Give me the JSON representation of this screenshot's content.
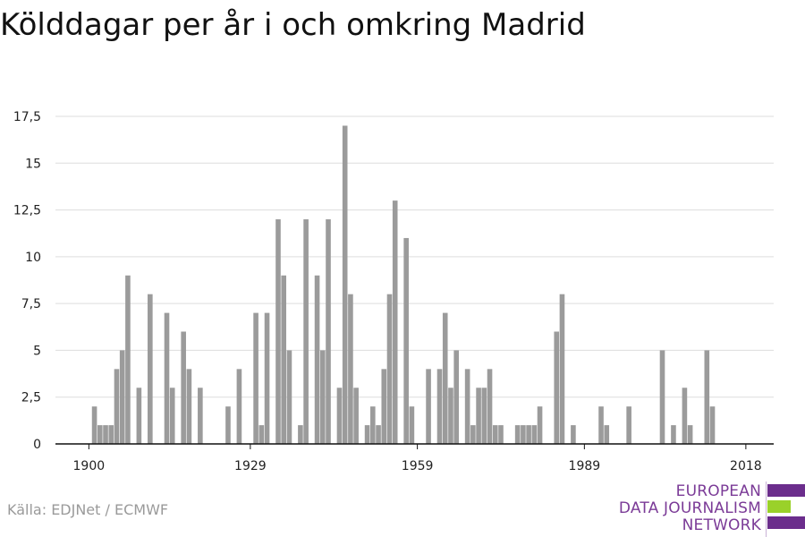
{
  "chart_data": {
    "type": "bar",
    "title": "Kölddagar per år i och omkring Madrid",
    "xlabel": "",
    "ylabel": "",
    "x_ticks": [
      "1900",
      "1929",
      "1959",
      "1989",
      "2018"
    ],
    "x_tick_years": [
      1900,
      1929,
      1959,
      1989,
      2018
    ],
    "y_ticks": [
      "0",
      "2,5",
      "5",
      "7,5",
      "10",
      "12,5",
      "15",
      "17,5"
    ],
    "y_tick_values": [
      0,
      2.5,
      5,
      7.5,
      10,
      12.5,
      15,
      17.5
    ],
    "ylim": [
      0,
      17.5
    ],
    "xlim": [
      1894,
      2023
    ],
    "grid": true,
    "bar_color": "#9b9b9b",
    "years": [
      1900,
      1901,
      1902,
      1903,
      1904,
      1905,
      1906,
      1907,
      1908,
      1909,
      1910,
      1911,
      1912,
      1913,
      1914,
      1915,
      1916,
      1917,
      1918,
      1919,
      1920,
      1921,
      1922,
      1923,
      1924,
      1925,
      1926,
      1927,
      1928,
      1929,
      1930,
      1931,
      1932,
      1933,
      1934,
      1935,
      1936,
      1937,
      1938,
      1939,
      1940,
      1941,
      1942,
      1943,
      1944,
      1945,
      1946,
      1947,
      1948,
      1949,
      1950,
      1951,
      1952,
      1953,
      1954,
      1955,
      1956,
      1957,
      1958,
      1959,
      1960,
      1961,
      1962,
      1963,
      1964,
      1965,
      1966,
      1967,
      1968,
      1969,
      1970,
      1971,
      1972,
      1973,
      1974,
      1975,
      1976,
      1977,
      1978,
      1979,
      1980,
      1981,
      1982,
      1983,
      1984,
      1985,
      1986,
      1987,
      1988,
      1989,
      1990,
      1991,
      1992,
      1993,
      1994,
      1995,
      1996,
      1997,
      1998,
      1999,
      2000,
      2001,
      2002,
      2003,
      2004,
      2005,
      2006,
      2007,
      2008,
      2009,
      2010,
      2011,
      2012,
      2013,
      2014,
      2015,
      2016,
      2017,
      2018
    ],
    "values": [
      0,
      2,
      1,
      1,
      1,
      4,
      5,
      9,
      0,
      3,
      0,
      8,
      0,
      0,
      7,
      3,
      0,
      6,
      4,
      0,
      3,
      0,
      0,
      0,
      0,
      2,
      0,
      4,
      0,
      0,
      7,
      1,
      7,
      0,
      12,
      9,
      5,
      0,
      1,
      12,
      0,
      9,
      5,
      12,
      0,
      3,
      17,
      8,
      3,
      0,
      1,
      2,
      1,
      4,
      8,
      13,
      0,
      11,
      2,
      0,
      0,
      4,
      0,
      4,
      7,
      3,
      5,
      0,
      4,
      1,
      3,
      3,
      4,
      1,
      1,
      0,
      0,
      1,
      1,
      1,
      1,
      2,
      0,
      0,
      6,
      8,
      0,
      1,
      0,
      0,
      0,
      0,
      2,
      1,
      0,
      0,
      0,
      2,
      0,
      0,
      0,
      0,
      0,
      5,
      0,
      1,
      0,
      3,
      1,
      0,
      0,
      5,
      2,
      0,
      0,
      0,
      0,
      0,
      0
    ]
  },
  "source": "Källa: EDJNet / ECMWF",
  "logo": {
    "lines": [
      "EUROPEAN",
      "DATA JOURNALISM",
      "NETWORK"
    ],
    "colors": {
      "purple": "#6b2d8c",
      "green": "#9ad12a",
      "text": "#7b3b97"
    }
  }
}
